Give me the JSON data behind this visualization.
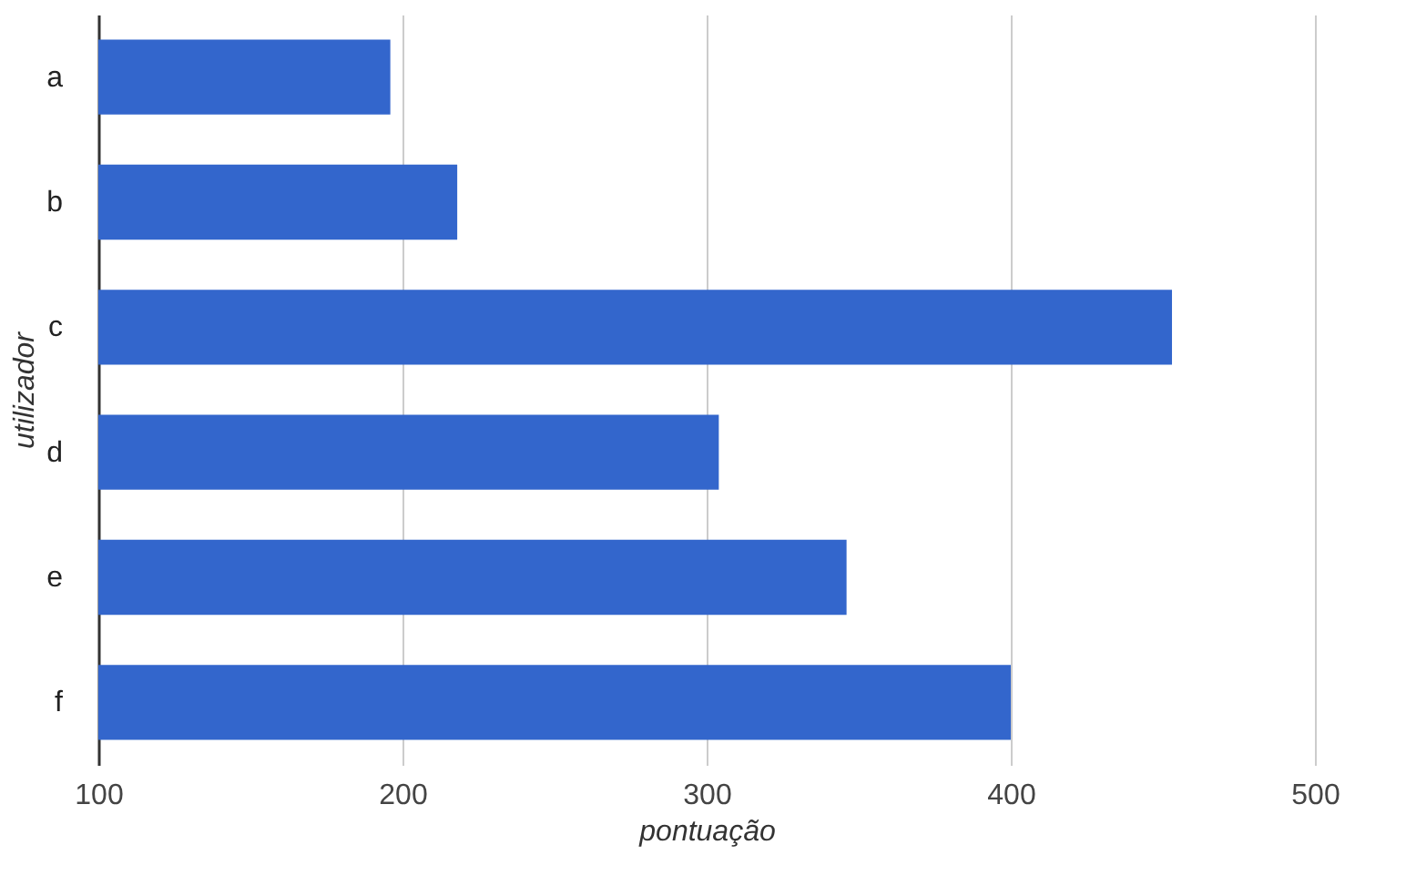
{
  "chart_data": {
    "type": "bar",
    "orientation": "horizontal",
    "xlabel": "pontuação",
    "ylabel": "utilizador",
    "categories": [
      "a",
      "b",
      "c",
      "d",
      "e",
      "f"
    ],
    "values": [
      196,
      218,
      453,
      304,
      346,
      400
    ],
    "color": "#3366cc",
    "xlim": [
      100,
      500
    ],
    "xticks": [
      100,
      200,
      300,
      400,
      500
    ],
    "grid": "x"
  }
}
